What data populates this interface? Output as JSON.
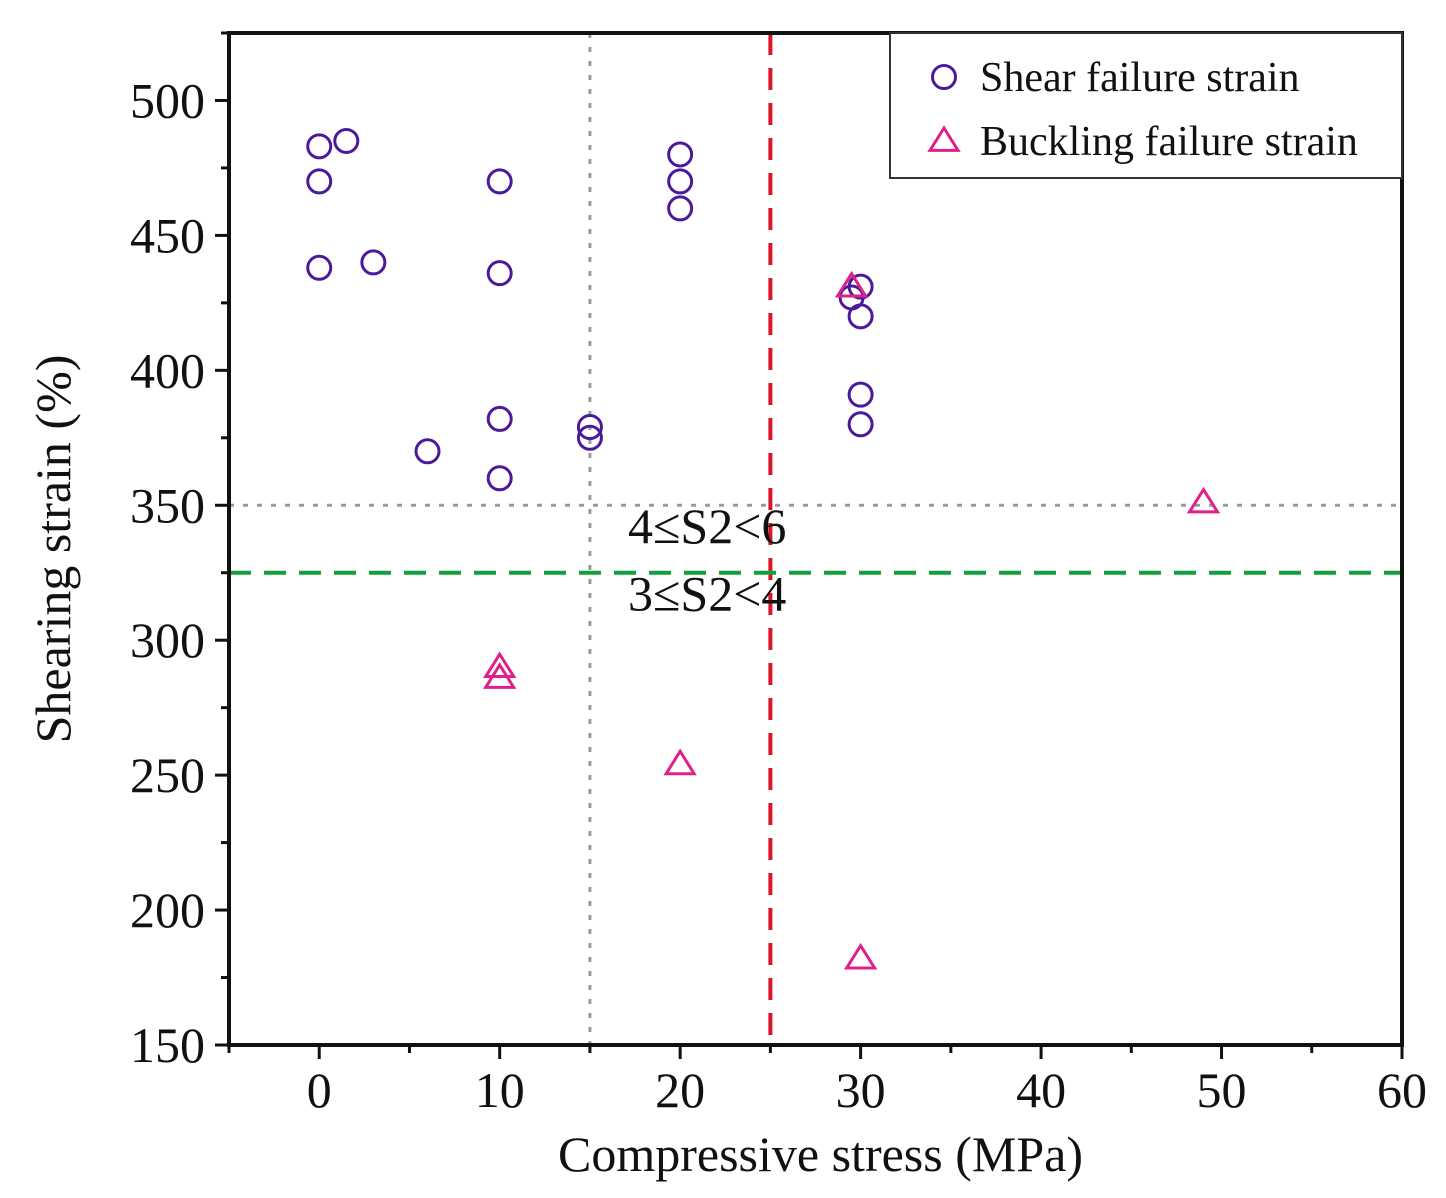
{
  "chart_data": {
    "type": "scatter",
    "title": "",
    "xlabel": "Compressive stress (MPa)",
    "ylabel": "Shearing strain (%)",
    "xlim": [
      -5,
      60
    ],
    "ylim": [
      150,
      525
    ],
    "xticks": [
      0,
      10,
      20,
      30,
      40,
      50,
      60
    ],
    "yticks": [
      150,
      200,
      250,
      300,
      350,
      400,
      450,
      500
    ],
    "grid": false,
    "legend_position": "top-right",
    "series": [
      {
        "name": "Shear failure strain",
        "marker": "circle",
        "color": "#4b1a9c",
        "points": [
          [
            0,
            483
          ],
          [
            0,
            470
          ],
          [
            0,
            438
          ],
          [
            1.5,
            485
          ],
          [
            3,
            440
          ],
          [
            6,
            370
          ],
          [
            10,
            470
          ],
          [
            10,
            436
          ],
          [
            10,
            382
          ],
          [
            10,
            360
          ],
          [
            15,
            379
          ],
          [
            15,
            375
          ],
          [
            20,
            480
          ],
          [
            20,
            470
          ],
          [
            20,
            460
          ],
          [
            29.5,
            427
          ],
          [
            30,
            431
          ],
          [
            30,
            420
          ],
          [
            30,
            391
          ],
          [
            30,
            380
          ]
        ]
      },
      {
        "name": "Buckling failure strain",
        "marker": "triangle",
        "color": "#e0208a",
        "points": [
          [
            10,
            290
          ],
          [
            10,
            286
          ],
          [
            20,
            254
          ],
          [
            29.5,
            431
          ],
          [
            30,
            182
          ],
          [
            49,
            351
          ]
        ]
      }
    ],
    "reference_lines": [
      {
        "orientation": "vertical",
        "value": 15,
        "style": "dotted",
        "color": "#9a9a9a"
      },
      {
        "orientation": "horizontal",
        "value": 350,
        "style": "dotted",
        "color": "#9a9a9a"
      },
      {
        "orientation": "vertical",
        "value": 25,
        "style": "dashed",
        "color": "#d9152a"
      },
      {
        "orientation": "horizontal",
        "value": 325,
        "style": "dashed",
        "color": "#12a03c"
      }
    ],
    "annotations": [
      {
        "text": "4≤S2<6",
        "x": 21.5,
        "y": 336
      },
      {
        "text": "3≤S2<4",
        "x": 21.5,
        "y": 311
      }
    ]
  }
}
